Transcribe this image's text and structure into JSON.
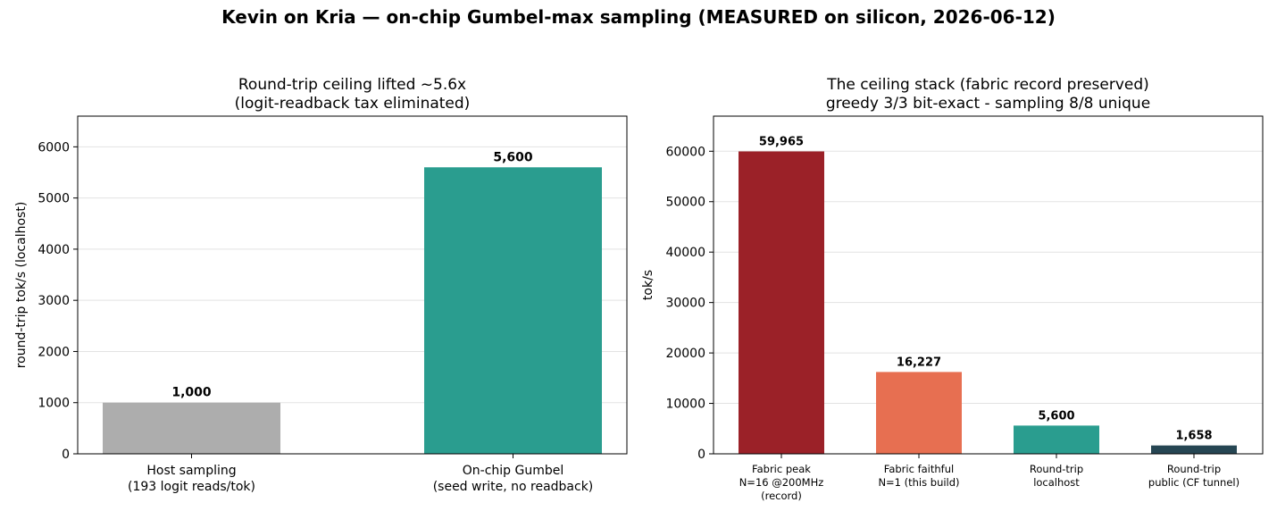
{
  "suptitle": "Kevin on Kria — on-chip Gumbel-max sampling (MEASURED on silicon, 2026-06-12)",
  "chart_data": [
    {
      "type": "bar",
      "title": [
        "Round-trip ceiling lifted ~5.6x",
        "(logit-readback tax eliminated)"
      ],
      "ylabel": "round-trip tok/s (localhost)",
      "xlabel": "",
      "categories": [
        [
          "Host sampling",
          "(193 logit reads/tok)"
        ],
        [
          "On-chip Gumbel",
          "(seed write, no readback)"
        ]
      ],
      "values": [
        1000,
        5600
      ],
      "value_labels": [
        "1,000",
        "5,600"
      ],
      "colors": [
        "#adadad",
        "#2a9d8f"
      ],
      "ylim": [
        0,
        6600
      ],
      "yticks": [
        0,
        1000,
        2000,
        3000,
        4000,
        5000,
        6000
      ],
      "grid": "y"
    },
    {
      "type": "bar",
      "title": [
        "The ceiling stack (fabric record preserved)",
        "greedy 3/3 bit-exact - sampling 8/8 unique"
      ],
      "ylabel": "tok/s",
      "xlabel": "",
      "categories": [
        [
          "Fabric peak",
          "N=16 @200MHz",
          "(record)"
        ],
        [
          "Fabric faithful",
          "N=1 (this build)"
        ],
        [
          "Round-trip",
          "localhost"
        ],
        [
          "Round-trip",
          "public (CF tunnel)"
        ]
      ],
      "values": [
        59965,
        16227,
        5600,
        1658
      ],
      "value_labels": [
        "59,965",
        "16,227",
        "5,600",
        "1,658"
      ],
      "colors": [
        "#9b2128",
        "#e76f51",
        "#2a9d8f",
        "#264653"
      ],
      "ylim": [
        0,
        66961
      ],
      "yticks": [
        0,
        10000,
        20000,
        30000,
        40000,
        50000,
        60000
      ],
      "grid": "y"
    }
  ]
}
